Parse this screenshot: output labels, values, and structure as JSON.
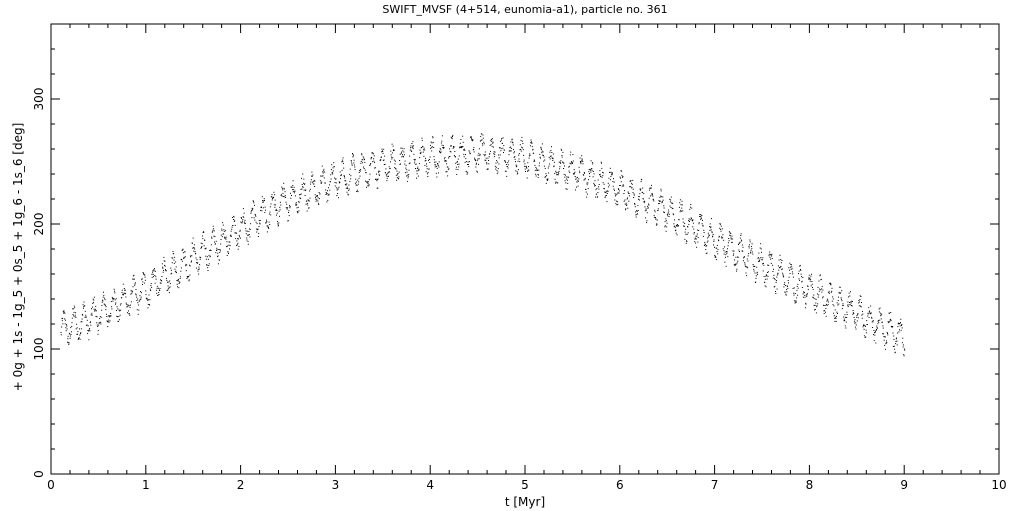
{
  "chart_data": {
    "type": "scatter",
    "title": "SWIFT_MVSF (4+514, eunomia-a1), particle no. 361",
    "xlabel": "t [Myr]",
    "ylabel": "+ 0g + 1s - 1g_5 + 0s_5 + 1g_6 - 1s_6 [deg]",
    "xlim": [
      0,
      10
    ],
    "ylim": [
      0,
      360
    ],
    "x_ticks": [
      0,
      1,
      2,
      3,
      4,
      5,
      6,
      7,
      8,
      9,
      10
    ],
    "y_ticks": [
      0,
      100,
      200,
      300
    ],
    "x_tick_labels": [
      "0",
      "1",
      "2",
      "3",
      "4",
      "5",
      "6",
      "7",
      "8",
      "9",
      "10"
    ],
    "y_tick_labels": [
      "0",
      "100",
      "200",
      "300"
    ],
    "grid": false,
    "marker_color": "#000000",
    "series": [
      {
        "trend_x": [
          0.1,
          0.5,
          1.0,
          1.5,
          2.0,
          2.5,
          3.0,
          3.5,
          4.0,
          4.5,
          5.0,
          5.5,
          6.0,
          6.5,
          7.0,
          7.5,
          8.0,
          8.5,
          9.0
        ],
        "trend_y": [
          115,
          128,
          148,
          173,
          196,
          220,
          236,
          247,
          254,
          258,
          253,
          243,
          228,
          210,
          188,
          167,
          147,
          128,
          108
        ],
        "oscillation_amplitude": 11,
        "scatter_spread": 6
      }
    ]
  }
}
